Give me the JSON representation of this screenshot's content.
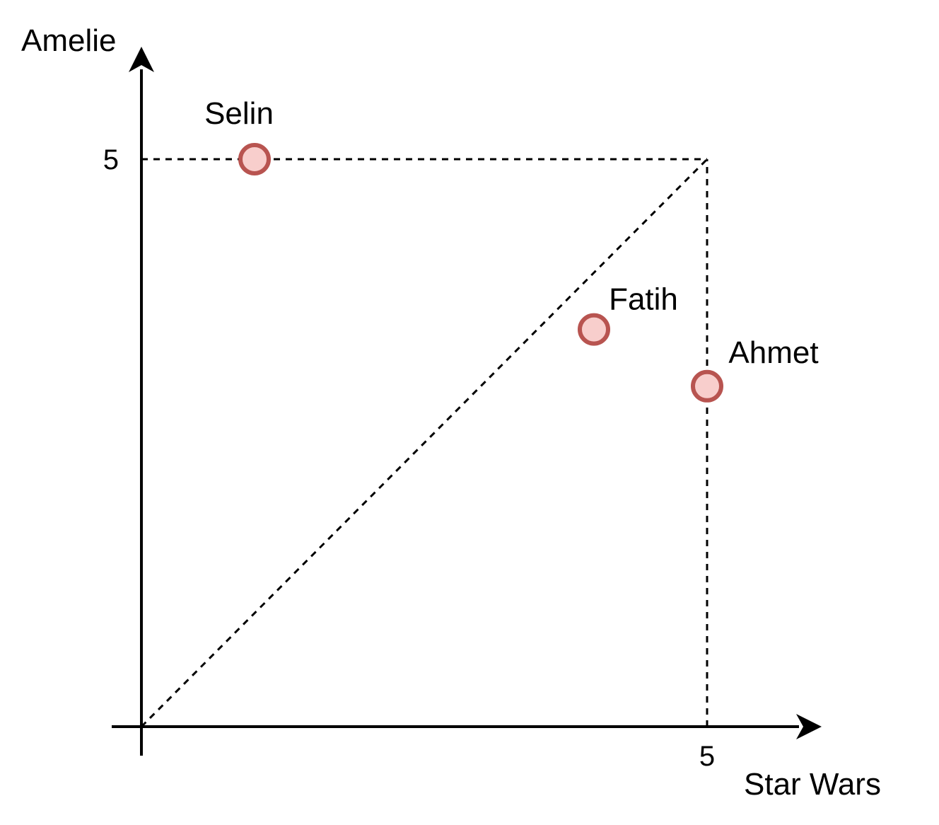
{
  "chart_data": {
    "type": "scatter",
    "xlabel": "Star Wars",
    "ylabel": "Amelie",
    "xlim": [
      0,
      5
    ],
    "ylim": [
      0,
      5
    ],
    "x_ticks": [
      5
    ],
    "y_ticks": [
      5
    ],
    "grid": false,
    "points": [
      {
        "label": "Selin",
        "x": 1,
        "y": 5
      },
      {
        "label": "Fatih",
        "x": 4,
        "y": 3.5
      },
      {
        "label": "Ahmet",
        "x": 5,
        "y": 3
      }
    ],
    "reference_lines": [
      {
        "name": "diagonal",
        "from": [
          0,
          0
        ],
        "to": [
          5,
          5
        ],
        "style": "dashed"
      },
      {
        "name": "y-max",
        "from": [
          0,
          5
        ],
        "to": [
          5,
          5
        ],
        "style": "dashed"
      },
      {
        "name": "x-max",
        "from": [
          5,
          0
        ],
        "to": [
          5,
          5
        ],
        "style": "dashed"
      }
    ],
    "colors": {
      "point_fill": "#f8cecc",
      "point_stroke": "#b85450",
      "axis": "#000000"
    }
  }
}
